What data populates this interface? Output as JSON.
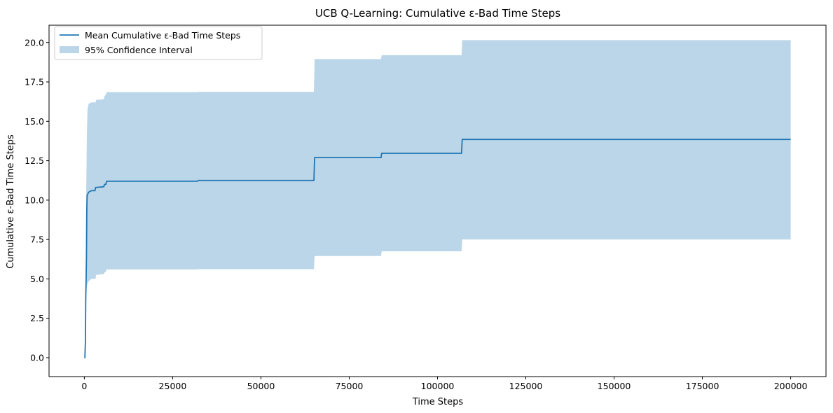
{
  "chart_data": {
    "type": "line",
    "title": "UCB Q-Learning: Cumulative ε-Bad Time Steps",
    "xlabel": "Time Steps",
    "ylabel": "Cumulative ε-Bad Time Steps",
    "xlim": [
      -10000,
      210000
    ],
    "ylim": [
      -1.2,
      21.1
    ],
    "xticks": [
      0,
      25000,
      50000,
      75000,
      100000,
      125000,
      150000,
      175000,
      200000
    ],
    "xtick_labels": [
      "0",
      "25000",
      "50000",
      "75000",
      "100000",
      "125000",
      "150000",
      "175000",
      "200000"
    ],
    "yticks": [
      0.0,
      2.5,
      5.0,
      7.5,
      10.0,
      12.5,
      15.0,
      17.5,
      20.0
    ],
    "ytick_labels": [
      "0.0",
      "2.5",
      "5.0",
      "7.5",
      "10.0",
      "12.5",
      "15.0",
      "17.5",
      "20.0"
    ],
    "grid": false,
    "legend": {
      "placement": "top-left",
      "entries": [
        "Mean Cumulative ε-Bad Time Steps",
        "95% Confidence Interval"
      ]
    },
    "colors": {
      "line": "#1f77b4",
      "band": "#1f77b4"
    },
    "series": [
      {
        "name": "Mean Cumulative ε-Bad Time Steps",
        "type": "line",
        "points": [
          [
            0,
            0.0
          ],
          [
            150,
            0.0
          ],
          [
            300,
            1.0
          ],
          [
            400,
            4.0
          ],
          [
            500,
            5.0
          ],
          [
            600,
            6.5
          ],
          [
            700,
            9.5
          ],
          [
            800,
            10.3
          ],
          [
            1200,
            10.5
          ],
          [
            2000,
            10.6
          ],
          [
            3000,
            10.6
          ],
          [
            3200,
            10.8
          ],
          [
            5500,
            10.85
          ],
          [
            5700,
            11.0
          ],
          [
            6100,
            11.0
          ],
          [
            6300,
            11.2
          ],
          [
            32000,
            11.2
          ],
          [
            32300,
            11.25
          ],
          [
            65000,
            11.25
          ],
          [
            65200,
            12.7
          ],
          [
            84000,
            12.7
          ],
          [
            84200,
            12.97
          ],
          [
            106800,
            12.97
          ],
          [
            107000,
            13.85
          ],
          [
            200000,
            13.85
          ]
        ]
      },
      {
        "name": "95% Confidence Interval",
        "type": "band",
        "points": [
          [
            0,
            0.0,
            0.0
          ],
          [
            300,
            0.0,
            1.2
          ],
          [
            400,
            2.5,
            6.0
          ],
          [
            500,
            3.5,
            10.0
          ],
          [
            700,
            4.5,
            14.0
          ],
          [
            900,
            4.7,
            15.8
          ],
          [
            1200,
            4.85,
            16.1
          ],
          [
            2000,
            5.0,
            16.2
          ],
          [
            3200,
            5.0,
            16.2
          ],
          [
            3300,
            5.25,
            16.35
          ],
          [
            5500,
            5.3,
            16.4
          ],
          [
            5700,
            5.4,
            16.6
          ],
          [
            6100,
            5.45,
            16.7
          ],
          [
            6300,
            5.6,
            16.85
          ],
          [
            32000,
            5.6,
            16.85
          ],
          [
            32300,
            5.62,
            16.87
          ],
          [
            65000,
            5.62,
            16.87
          ],
          [
            65200,
            6.45,
            18.95
          ],
          [
            84000,
            6.45,
            18.95
          ],
          [
            84200,
            6.75,
            19.2
          ],
          [
            106800,
            6.75,
            19.2
          ],
          [
            107000,
            7.5,
            20.15
          ],
          [
            200000,
            7.5,
            20.15
          ]
        ]
      }
    ]
  }
}
